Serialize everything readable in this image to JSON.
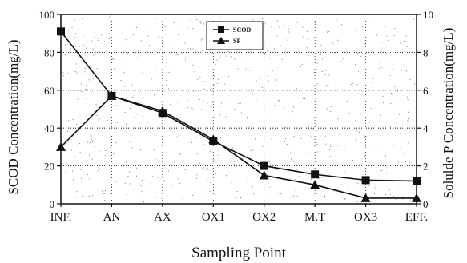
{
  "chart_data": {
    "type": "line",
    "title": "",
    "xlabel": "Sampling Point",
    "ylabel_left": "SCOD Concentration(mg/L)",
    "ylabel_right": "Solulde P Concentration(mg/L)",
    "categories": [
      "INF.",
      "AN",
      "AX",
      "OX1",
      "OX2",
      "M.T",
      "OX3",
      "EFF."
    ],
    "ylim_left": [
      0,
      100
    ],
    "yticks_left": [
      0,
      20,
      40,
      60,
      80,
      100
    ],
    "ylim_right": [
      0,
      10
    ],
    "yticks_right": [
      0,
      2,
      4,
      6,
      8,
      10
    ],
    "grid": true,
    "legend_position": "top-center",
    "series": [
      {
        "name": "SCOD",
        "axis": "left",
        "marker": "square",
        "values": [
          91,
          57,
          48,
          33,
          20,
          15.5,
          12.5,
          12
        ]
      },
      {
        "name": "SP",
        "axis": "right",
        "marker": "triangle",
        "values": [
          3.0,
          5.7,
          4.9,
          3.4,
          1.5,
          1.0,
          0.3,
          0.3
        ]
      }
    ],
    "colors": {
      "line": "#111111",
      "grid": "#222222",
      "noise": "#777777"
    }
  }
}
